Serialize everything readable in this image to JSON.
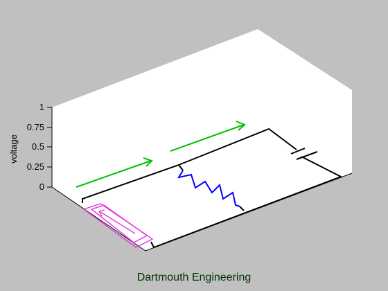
{
  "figure": {
    "caption": "Dartmouth Engineering",
    "ylabel": "voltage",
    "yticks": [
      "0",
      "0.25",
      "0.5",
      "0.75",
      "1"
    ],
    "colors": {
      "background": "#c0c0c0",
      "pane": "#ffffff",
      "wire": "#000000",
      "resistor": "#0000ff",
      "current_arrow": "#00c000",
      "source": "#e040e0",
      "caption": "#003300"
    }
  },
  "circuit": {
    "components": [
      "battery-source",
      "resistor",
      "capacitor"
    ],
    "current_arrow_count": 2
  }
}
